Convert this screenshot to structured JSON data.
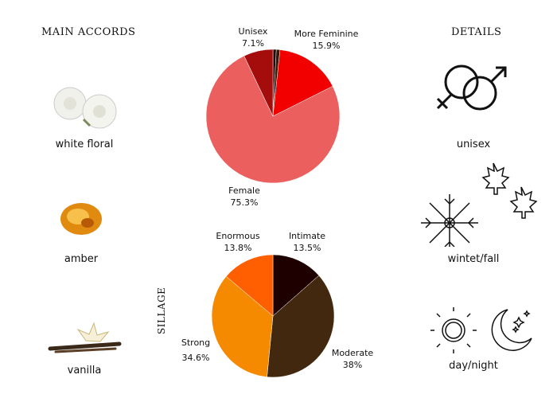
{
  "left": {
    "title": "MAIN ACCORDS",
    "accords": [
      {
        "label": "white floral",
        "icon": "white-rose-image"
      },
      {
        "label": "amber",
        "icon": "amber-image"
      },
      {
        "label": "vanilla",
        "icon": "vanilla-image"
      }
    ]
  },
  "right": {
    "title": "DETAILS",
    "items": [
      {
        "label": "unisex",
        "icon": "gender-symbols-icon"
      },
      {
        "label": "wintet/fall",
        "icon": "snowflake-maple-leaf-icon"
      },
      {
        "label": "day/night",
        "icon": "sun-moon-icon"
      }
    ]
  },
  "sillage_label": "SILLAGE",
  "chart_data": [
    {
      "type": "pie",
      "direction": "clockwise",
      "start": "top",
      "slices": [
        {
          "label": "",
          "value": 0.8,
          "color": "#1a0505",
          "text": ""
        },
        {
          "label": "",
          "value": 0.9,
          "color": "#3a1808",
          "text": ""
        },
        {
          "label": "More Feminine",
          "value": 15.9,
          "color": "#f20000",
          "text": "15.9%"
        },
        {
          "label": "Female",
          "value": 75.3,
          "color": "#eb5f5f",
          "text": "75.3%"
        },
        {
          "label": "Unisex",
          "value": 7.1,
          "color": "#a50d0d",
          "text": "7.1%"
        }
      ]
    },
    {
      "type": "pie",
      "direction": "clockwise",
      "start": "top",
      "slices": [
        {
          "label": "Intimate",
          "value": 13.5,
          "color": "#1e0000",
          "text": "13.5%"
        },
        {
          "label": "Moderate",
          "value": 38,
          "color": "#42280e",
          "text": "38%"
        },
        {
          "label": "Strong",
          "value": 34.6,
          "color": "#f58a00",
          "text": "34.6%"
        },
        {
          "label": "Enormous",
          "value": 13.8,
          "color": "#ff5f00",
          "text": "13.8%"
        }
      ]
    }
  ]
}
